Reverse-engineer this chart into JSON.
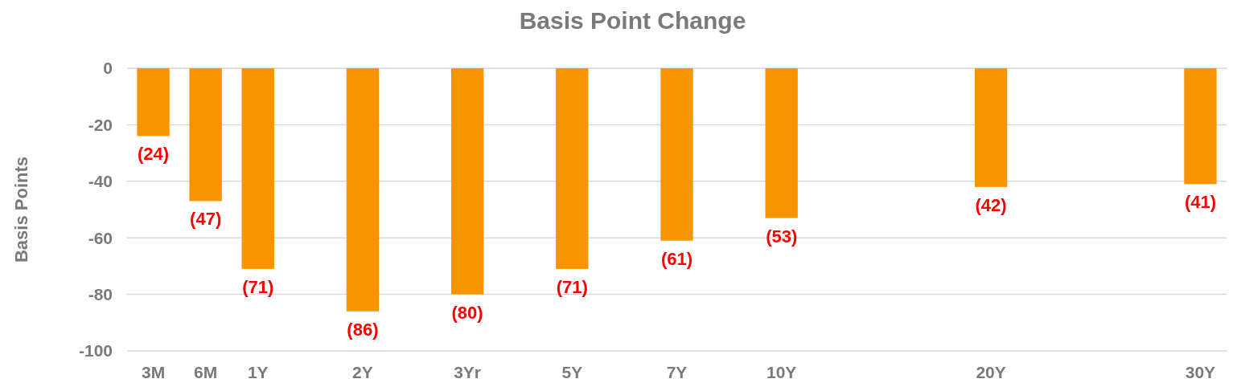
{
  "chart_data": {
    "type": "bar",
    "title": "Basis Point Change",
    "ylabel": "Basis Points",
    "categories": [
      "3M",
      "6M",
      "1Y",
      null,
      "2Y",
      null,
      "3Yr",
      null,
      "5Y",
      null,
      "7Y",
      null,
      "10Y",
      null,
      null,
      null,
      "20Y",
      null,
      null,
      null,
      "30Y"
    ],
    "values": [
      -24,
      -47,
      -71,
      null,
      -86,
      null,
      -80,
      null,
      -71,
      null,
      -61,
      null,
      -53,
      null,
      null,
      null,
      -42,
      null,
      null,
      null,
      -41
    ],
    "value_labels": [
      "(24)",
      "(47)",
      "(71)",
      null,
      "(86)",
      null,
      "(80)",
      null,
      "(71)",
      null,
      "(61)",
      null,
      "(53)",
      null,
      null,
      null,
      "(42)",
      null,
      null,
      null,
      "(41)"
    ],
    "color": "#f79400",
    "ylim": [
      -100,
      0
    ],
    "yticks": [
      0,
      -20,
      -40,
      -60,
      -80,
      -100
    ],
    "grid": "y"
  }
}
